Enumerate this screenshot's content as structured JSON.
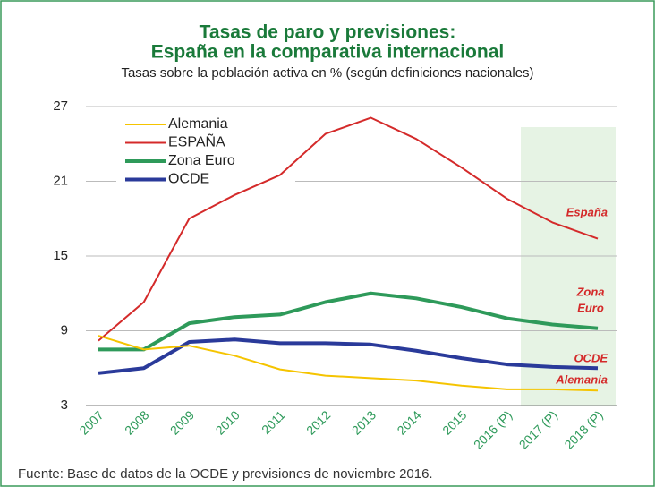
{
  "chart_data": {
    "type": "line",
    "title": [
      "Tasas de paro y previsiones:",
      "España en la comparativa internacional"
    ],
    "subtitle": "Tasas sobre la población activa en % (según definiciones nacionales)",
    "source": "Fuente: Base de datos de la OCDE y previsiones de noviembre 2016.",
    "categories": [
      "2007",
      "2008",
      "2009",
      "2010",
      "2011",
      "2012",
      "2013",
      "2014",
      "2015",
      "2016 (P)",
      "2017 (P)",
      "2018 (P)"
    ],
    "series": [
      {
        "name": "Alemania",
        "color": "#f5c400",
        "values": [
          8.6,
          7.5,
          7.8,
          7.0,
          5.9,
          5.4,
          5.2,
          5.0,
          4.6,
          4.3,
          4.3,
          4.2
        ]
      },
      {
        "name": "ESPAÑA",
        "color": "#d42a2a",
        "values": [
          8.2,
          11.3,
          18.0,
          19.9,
          21.5,
          24.8,
          26.1,
          24.4,
          22.1,
          19.6,
          17.7,
          16.4
        ]
      },
      {
        "name": "Zona Euro",
        "color": "#2e9a5a",
        "values": [
          7.5,
          7.5,
          9.6,
          10.1,
          10.3,
          11.3,
          12.0,
          11.6,
          10.9,
          10.0,
          9.5,
          9.2
        ]
      },
      {
        "name": "OCDE",
        "color": "#2a3a9a",
        "values": [
          5.6,
          6.0,
          8.1,
          8.3,
          8.0,
          8.0,
          7.9,
          7.4,
          6.8,
          6.3,
          6.1,
          6.0
        ]
      }
    ],
    "annotations": [
      "España",
      "Zona",
      "Euro",
      "OCDE",
      "Alemania"
    ],
    "ylim": [
      3,
      27
    ],
    "yticks": [
      3,
      9,
      15,
      21,
      27
    ],
    "grid": true
  }
}
